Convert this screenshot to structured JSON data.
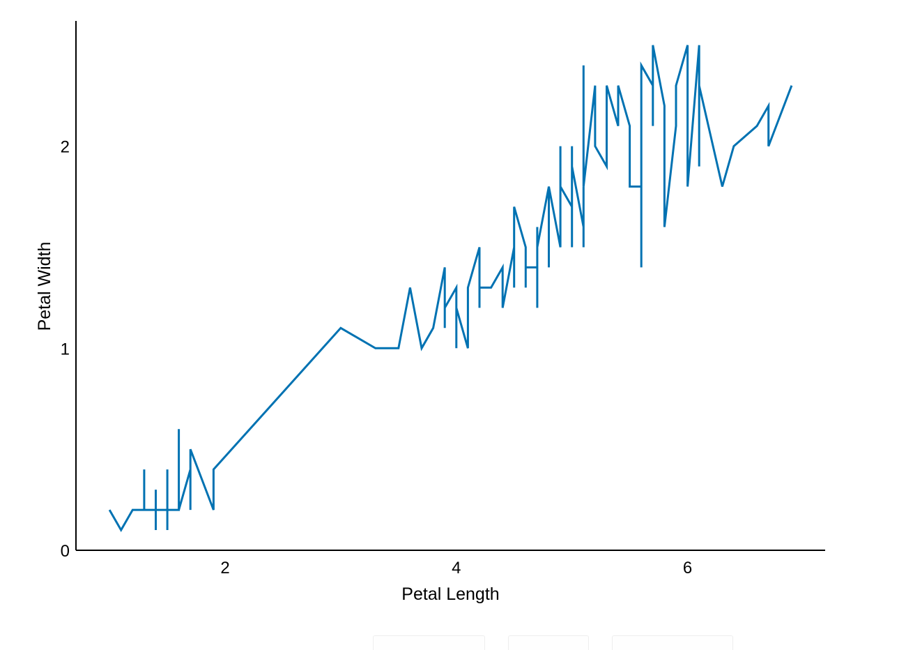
{
  "chart_data": {
    "type": "line",
    "xlabel": "Petal Length",
    "ylabel": "Petal Width",
    "xlim": [
      0.71,
      7.19
    ],
    "ylim": [
      0,
      2.62
    ],
    "x_ticks": [
      2,
      4,
      6
    ],
    "y_ticks": [
      0,
      1,
      2
    ],
    "grid": false,
    "series": [
      {
        "color": "#0072b2",
        "points": [
          [
            1.0,
            0.2
          ],
          [
            1.1,
            0.1
          ],
          [
            1.2,
            0.2
          ],
          [
            1.3,
            0.2
          ],
          [
            1.3,
            0.4
          ],
          [
            1.3,
            0.2
          ],
          [
            1.4,
            0.2
          ],
          [
            1.4,
            0.1
          ],
          [
            1.4,
            0.3
          ],
          [
            1.4,
            0.2
          ],
          [
            1.5,
            0.2
          ],
          [
            1.5,
            0.1
          ],
          [
            1.5,
            0.4
          ],
          [
            1.5,
            0.2
          ],
          [
            1.6,
            0.2
          ],
          [
            1.6,
            0.6
          ],
          [
            1.6,
            0.2
          ],
          [
            1.7,
            0.4
          ],
          [
            1.7,
            0.2
          ],
          [
            1.7,
            0.5
          ],
          [
            1.9,
            0.2
          ],
          [
            1.9,
            0.4
          ],
          [
            3.0,
            1.1
          ],
          [
            3.3,
            1.0
          ],
          [
            3.5,
            1.0
          ],
          [
            3.6,
            1.3
          ],
          [
            3.7,
            1.0
          ],
          [
            3.8,
            1.1
          ],
          [
            3.9,
            1.4
          ],
          [
            3.9,
            1.1
          ],
          [
            3.9,
            1.2
          ],
          [
            4.0,
            1.3
          ],
          [
            4.0,
            1.0
          ],
          [
            4.0,
            1.2
          ],
          [
            4.1,
            1.0
          ],
          [
            4.1,
            1.3
          ],
          [
            4.2,
            1.5
          ],
          [
            4.2,
            1.2
          ],
          [
            4.2,
            1.3
          ],
          [
            4.3,
            1.3
          ],
          [
            4.4,
            1.4
          ],
          [
            4.4,
            1.2
          ],
          [
            4.5,
            1.5
          ],
          [
            4.5,
            1.3
          ],
          [
            4.5,
            1.7
          ],
          [
            4.6,
            1.5
          ],
          [
            4.6,
            1.3
          ],
          [
            4.6,
            1.4
          ],
          [
            4.7,
            1.4
          ],
          [
            4.7,
            1.2
          ],
          [
            4.7,
            1.6
          ],
          [
            4.7,
            1.5
          ],
          [
            4.8,
            1.8
          ],
          [
            4.8,
            1.4
          ],
          [
            4.8,
            1.8
          ],
          [
            4.9,
            1.5
          ],
          [
            4.9,
            2.0
          ],
          [
            4.9,
            1.8
          ],
          [
            5.0,
            1.7
          ],
          [
            5.0,
            1.5
          ],
          [
            5.0,
            2.0
          ],
          [
            5.0,
            1.9
          ],
          [
            5.1,
            1.6
          ],
          [
            5.1,
            1.5
          ],
          [
            5.1,
            2.4
          ],
          [
            5.1,
            1.8
          ],
          [
            5.2,
            2.3
          ],
          [
            5.2,
            2.0
          ],
          [
            5.3,
            1.9
          ],
          [
            5.3,
            2.3
          ],
          [
            5.4,
            2.1
          ],
          [
            5.4,
            2.3
          ],
          [
            5.5,
            2.1
          ],
          [
            5.5,
            1.8
          ],
          [
            5.6,
            1.8
          ],
          [
            5.6,
            1.4
          ],
          [
            5.6,
            2.4
          ],
          [
            5.7,
            2.3
          ],
          [
            5.7,
            2.1
          ],
          [
            5.7,
            2.5
          ],
          [
            5.8,
            2.2
          ],
          [
            5.8,
            1.6
          ],
          [
            5.9,
            2.1
          ],
          [
            5.9,
            2.3
          ],
          [
            6.0,
            2.5
          ],
          [
            6.0,
            1.8
          ],
          [
            6.1,
            2.5
          ],
          [
            6.1,
            1.9
          ],
          [
            6.1,
            2.3
          ],
          [
            6.3,
            1.8
          ],
          [
            6.4,
            2.0
          ],
          [
            6.6,
            2.1
          ],
          [
            6.7,
            2.2
          ],
          [
            6.7,
            2.0
          ],
          [
            6.9,
            2.3
          ]
        ]
      }
    ]
  }
}
